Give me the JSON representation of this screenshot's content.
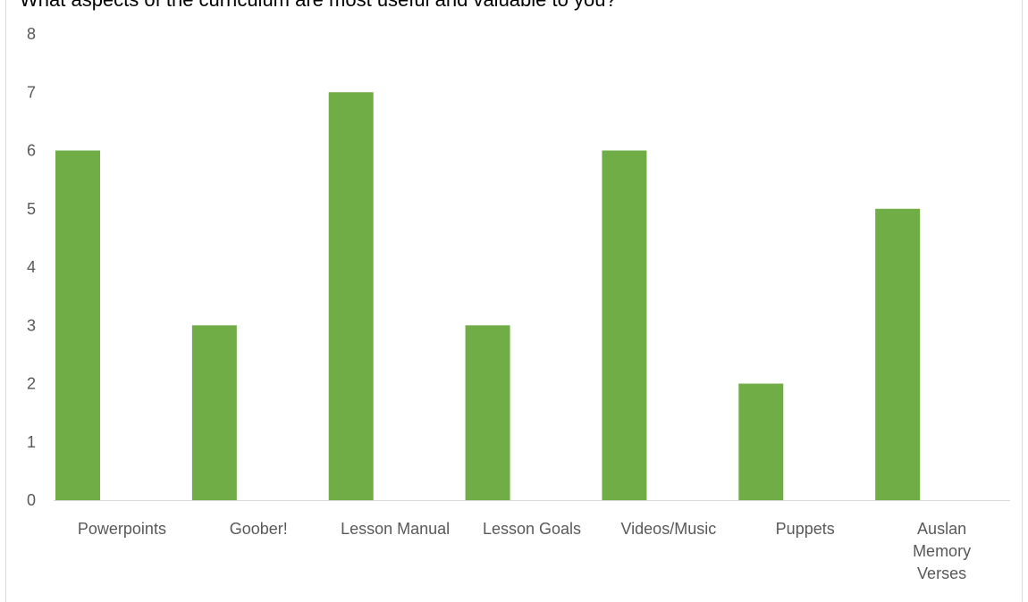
{
  "chart_data": {
    "type": "bar",
    "title": "What aspects of the curriculum are most useful and valuable to you?",
    "categories": [
      "Powerpoints",
      "Goober!",
      "Lesson Manual",
      "Lesson Goals",
      "Videos/Music",
      "Puppets",
      "Auslan Memory Verses"
    ],
    "category_label_lines": [
      [
        "Powerpoints"
      ],
      [
        "Goober!"
      ],
      [
        "Lesson Manual"
      ],
      [
        "Lesson Goals"
      ],
      [
        "Videos/Music"
      ],
      [
        "Puppets"
      ],
      [
        "Auslan",
        "Memory",
        "Verses"
      ]
    ],
    "values": [
      6,
      3,
      7,
      3,
      6,
      2,
      5
    ],
    "ylim": [
      0,
      8
    ],
    "yticks": [
      "0",
      "1",
      "2",
      "3",
      "4",
      "5",
      "6",
      "7",
      "8"
    ],
    "xlabel": "",
    "ylabel": "",
    "grid": false,
    "bar_color": "#70ad47",
    "axis_color": "#d9d9d9",
    "label_color": "#595959"
  }
}
